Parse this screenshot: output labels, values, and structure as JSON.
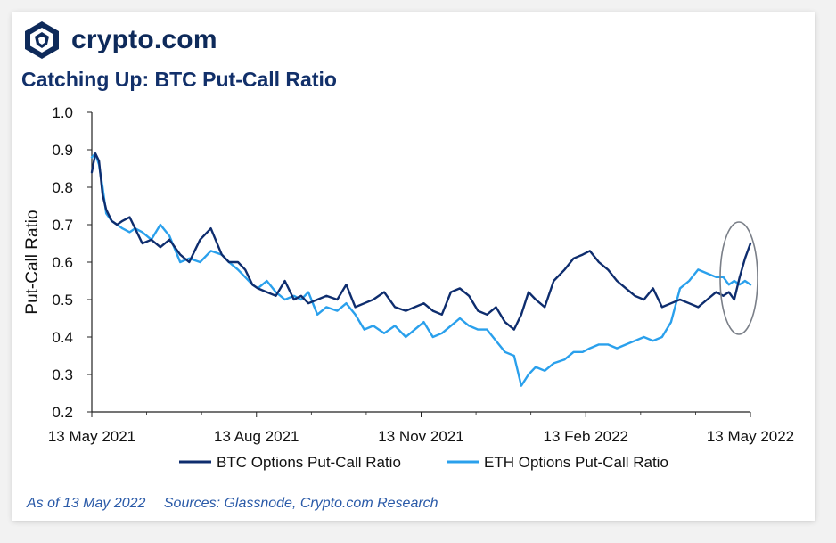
{
  "brand": {
    "name": "crypto.com"
  },
  "footer": {
    "as_of": "As of 13 May 2022",
    "sources": "Sources: Glassnode, Crypto.com Research"
  },
  "chart_data": {
    "type": "line",
    "title": "Catching Up: BTC Put-Call Ratio",
    "ylabel": "Put-Call Ratio",
    "xlabel": "",
    "ylim": [
      0.2,
      1.0
    ],
    "xlim": [
      "2021-05-13",
      "2022-05-13"
    ],
    "yticks": [
      "1.0",
      "0.9",
      "0.8",
      "0.7",
      "0.6",
      "0.5",
      "0.4",
      "0.3",
      "0.2"
    ],
    "xticks": [
      "13 May 2021",
      "13 Aug 2021",
      "13 Nov 2021",
      "13 Feb 2022",
      "13 May 2022"
    ],
    "grid": false,
    "legend": "bottom",
    "annotation": "ellipse around latest BTC values",
    "series": [
      {
        "name": "BTC Options Put-Call Ratio",
        "color": "#0e2d6e",
        "x": [
          "2021-05-13",
          "2021-05-15",
          "2021-05-17",
          "2021-05-19",
          "2021-05-21",
          "2021-05-24",
          "2021-05-27",
          "2021-05-30",
          "2021-06-03",
          "2021-06-06",
          "2021-06-10",
          "2021-06-15",
          "2021-06-20",
          "2021-06-25",
          "2021-07-01",
          "2021-07-06",
          "2021-07-12",
          "2021-07-18",
          "2021-07-24",
          "2021-07-28",
          "2021-08-02",
          "2021-08-06",
          "2021-08-10",
          "2021-08-13",
          "2021-08-18",
          "2021-08-23",
          "2021-08-28",
          "2021-09-02",
          "2021-09-06",
          "2021-09-10",
          "2021-09-15",
          "2021-09-20",
          "2021-09-26",
          "2021-10-01",
          "2021-10-06",
          "2021-10-11",
          "2021-10-16",
          "2021-10-22",
          "2021-10-28",
          "2021-11-03",
          "2021-11-08",
          "2021-11-13",
          "2021-11-18",
          "2021-11-23",
          "2021-11-28",
          "2021-12-03",
          "2021-12-08",
          "2021-12-13",
          "2021-12-18",
          "2021-12-23",
          "2021-12-28",
          "2022-01-02",
          "2022-01-06",
          "2022-01-10",
          "2022-01-14",
          "2022-01-19",
          "2022-01-24",
          "2022-01-30",
          "2022-02-04",
          "2022-02-09",
          "2022-02-13",
          "2022-02-18",
          "2022-02-23",
          "2022-02-28",
          "2022-03-05",
          "2022-03-10",
          "2022-03-15",
          "2022-03-20",
          "2022-03-25",
          "2022-03-30",
          "2022-04-04",
          "2022-04-09",
          "2022-04-14",
          "2022-04-19",
          "2022-04-24",
          "2022-04-28",
          "2022-05-01",
          "2022-05-04",
          "2022-05-07",
          "2022-05-10",
          "2022-05-13"
        ],
        "values": [
          0.84,
          0.89,
          0.87,
          0.78,
          0.74,
          0.71,
          0.7,
          0.71,
          0.72,
          0.69,
          0.65,
          0.66,
          0.64,
          0.66,
          0.62,
          0.6,
          0.66,
          0.69,
          0.62,
          0.6,
          0.6,
          0.58,
          0.54,
          0.53,
          0.52,
          0.51,
          0.55,
          0.5,
          0.51,
          0.49,
          0.5,
          0.51,
          0.5,
          0.54,
          0.48,
          0.49,
          0.5,
          0.52,
          0.48,
          0.47,
          0.48,
          0.49,
          0.47,
          0.46,
          0.52,
          0.53,
          0.51,
          0.47,
          0.46,
          0.48,
          0.44,
          0.42,
          0.46,
          0.52,
          0.5,
          0.48,
          0.55,
          0.58,
          0.61,
          0.62,
          0.63,
          0.6,
          0.58,
          0.55,
          0.53,
          0.51,
          0.5,
          0.53,
          0.48,
          0.49,
          0.5,
          0.49,
          0.48,
          0.5,
          0.52,
          0.51,
          0.52,
          0.5,
          0.56,
          0.61,
          0.65
        ]
      },
      {
        "name": "ETH Options Put-Call Ratio",
        "color": "#2aa0ec",
        "x": [
          "2021-05-13",
          "2021-05-15",
          "2021-05-17",
          "2021-05-19",
          "2021-05-21",
          "2021-05-24",
          "2021-05-27",
          "2021-05-30",
          "2021-06-03",
          "2021-06-06",
          "2021-06-10",
          "2021-06-15",
          "2021-06-20",
          "2021-06-25",
          "2021-07-01",
          "2021-07-06",
          "2021-07-12",
          "2021-07-18",
          "2021-07-24",
          "2021-07-28",
          "2021-08-02",
          "2021-08-06",
          "2021-08-10",
          "2021-08-13",
          "2021-08-18",
          "2021-08-23",
          "2021-08-28",
          "2021-09-02",
          "2021-09-06",
          "2021-09-10",
          "2021-09-15",
          "2021-09-20",
          "2021-09-26",
          "2021-10-01",
          "2021-10-06",
          "2021-10-11",
          "2021-10-16",
          "2021-10-22",
          "2021-10-28",
          "2021-11-03",
          "2021-11-08",
          "2021-11-13",
          "2021-11-18",
          "2021-11-23",
          "2021-11-28",
          "2021-12-03",
          "2021-12-08",
          "2021-12-13",
          "2021-12-18",
          "2021-12-23",
          "2021-12-28",
          "2022-01-02",
          "2022-01-06",
          "2022-01-10",
          "2022-01-14",
          "2022-01-19",
          "2022-01-24",
          "2022-01-30",
          "2022-02-04",
          "2022-02-09",
          "2022-02-13",
          "2022-02-18",
          "2022-02-23",
          "2022-02-28",
          "2022-03-05",
          "2022-03-10",
          "2022-03-15",
          "2022-03-20",
          "2022-03-25",
          "2022-03-30",
          "2022-04-04",
          "2022-04-09",
          "2022-04-14",
          "2022-04-19",
          "2022-04-24",
          "2022-04-28",
          "2022-05-01",
          "2022-05-04",
          "2022-05-07",
          "2022-05-10",
          "2022-05-13"
        ],
        "values": [
          0.88,
          0.89,
          0.86,
          0.8,
          0.73,
          0.71,
          0.7,
          0.69,
          0.68,
          0.69,
          0.68,
          0.66,
          0.7,
          0.67,
          0.6,
          0.61,
          0.6,
          0.63,
          0.62,
          0.6,
          0.58,
          0.56,
          0.54,
          0.53,
          0.55,
          0.52,
          0.5,
          0.51,
          0.5,
          0.52,
          0.46,
          0.48,
          0.47,
          0.49,
          0.46,
          0.42,
          0.43,
          0.41,
          0.43,
          0.4,
          0.42,
          0.44,
          0.4,
          0.41,
          0.43,
          0.45,
          0.43,
          0.42,
          0.42,
          0.39,
          0.36,
          0.35,
          0.27,
          0.3,
          0.32,
          0.31,
          0.33,
          0.34,
          0.36,
          0.36,
          0.37,
          0.38,
          0.38,
          0.37,
          0.38,
          0.39,
          0.4,
          0.39,
          0.4,
          0.44,
          0.53,
          0.55,
          0.58,
          0.57,
          0.56,
          0.56,
          0.54,
          0.55,
          0.54,
          0.55,
          0.54
        ]
      }
    ]
  }
}
